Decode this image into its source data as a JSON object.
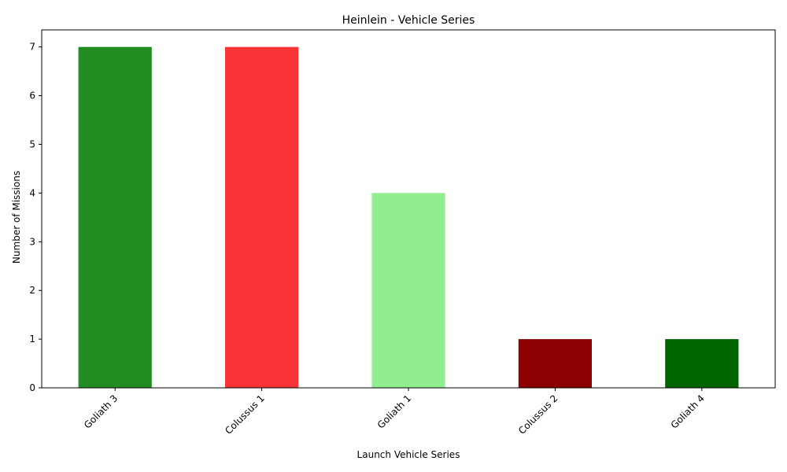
{
  "chart_data": {
    "type": "bar",
    "title": "Heinlein - Vehicle Series",
    "xlabel": "Launch Vehicle Series",
    "ylabel": "Number of Missions",
    "categories": [
      "Goliath 3",
      "Colussus 1",
      "Goliath 1",
      "Colussus 2",
      "Goliath 4"
    ],
    "values": [
      7,
      7,
      4,
      1,
      1
    ],
    "colors": [
      "#228b22",
      "#f83436",
      "#90ee90",
      "#8b0000",
      "#006400"
    ],
    "yticks": [
      "0",
      "1",
      "2",
      "3",
      "4",
      "5",
      "6",
      "7"
    ],
    "ylim": [
      0,
      7.35
    ],
    "grid": false,
    "legend": "none"
  }
}
